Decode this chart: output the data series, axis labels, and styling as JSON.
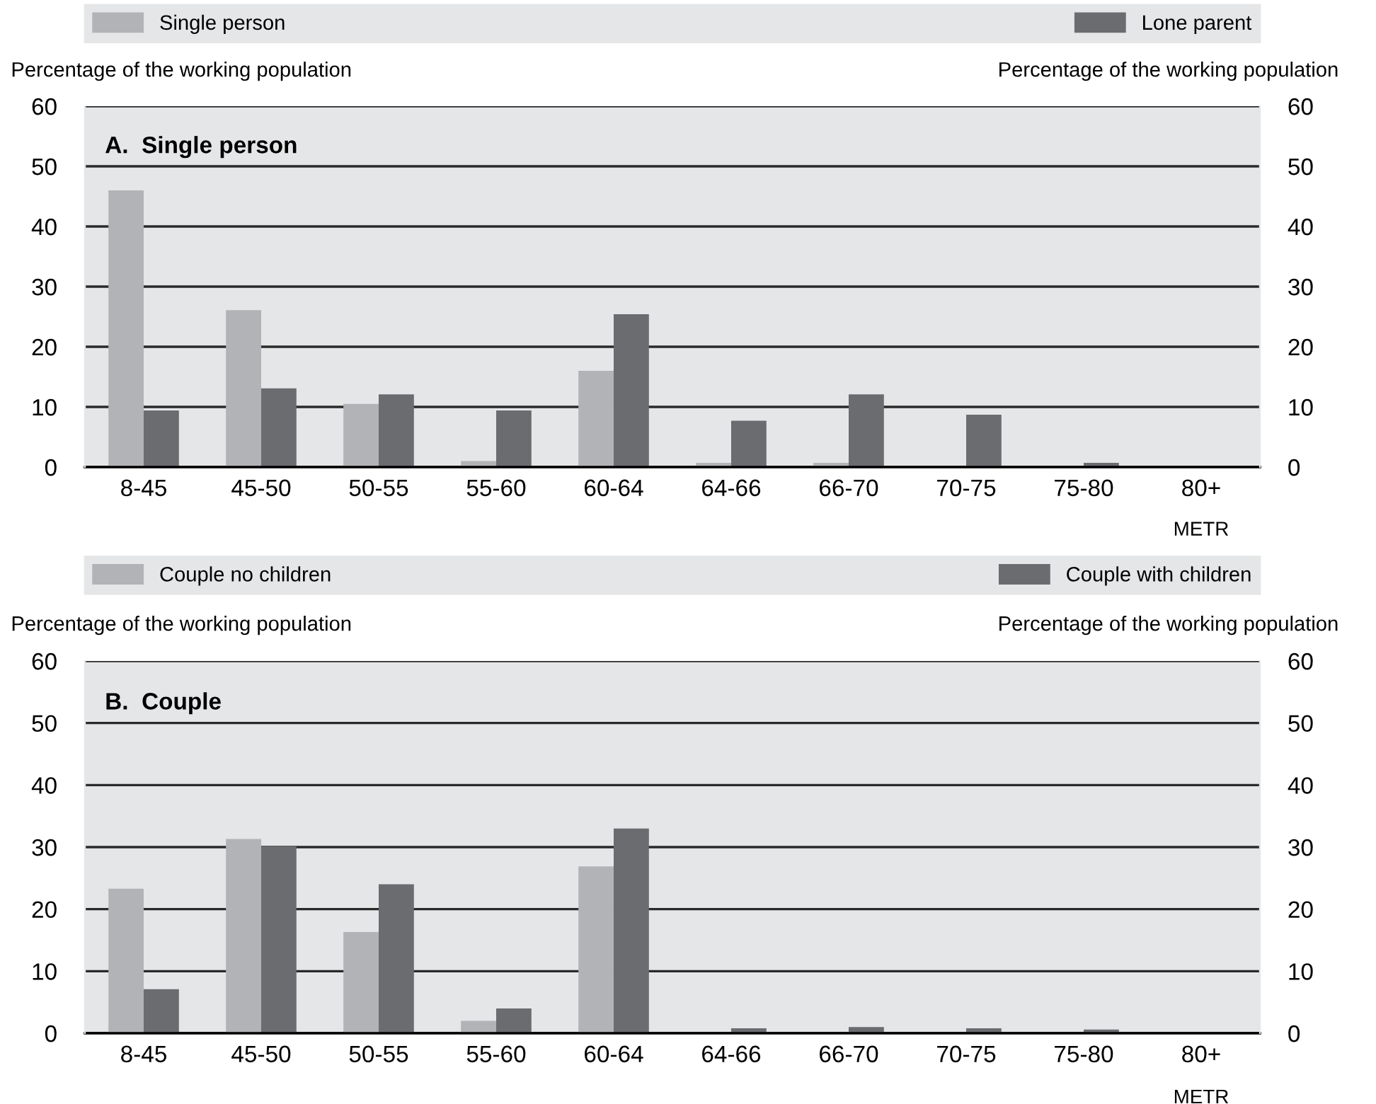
{
  "chart_data": [
    {
      "type": "bar",
      "title": "A.  Single person",
      "ylabel": "Percentage of the working population",
      "y2label": "Percentage of the working population",
      "xlabel": "METR",
      "categories": [
        "8-45",
        "45-50",
        "50-55",
        "55-60",
        "60-64",
        "64-66",
        "66-70",
        "70-75",
        "75-80",
        "80+"
      ],
      "series": [
        {
          "name": "Single person",
          "color": "#b2b3b6",
          "values": [
            46,
            26.1,
            10.5,
            1.0,
            16.0,
            0.7,
            0.7,
            0,
            0,
            0
          ]
        },
        {
          "name": "Lone parent",
          "color": "#6b6c70",
          "values": [
            9.4,
            13.1,
            12.1,
            9.4,
            25.4,
            7.7,
            12.1,
            8.7,
            0.7,
            0.2
          ]
        }
      ],
      "ylim": [
        0,
        60
      ],
      "yticks": [
        0,
        10,
        20,
        30,
        40,
        50,
        60
      ],
      "y2lim": [
        0,
        60
      ],
      "y2ticks": [
        0,
        10,
        20,
        30,
        40,
        50,
        60
      ],
      "grid": "y",
      "legend": "top"
    },
    {
      "type": "bar",
      "title": "B.  Couple",
      "ylabel": "Percentage of the working population",
      "y2label": "Percentage of the working population",
      "xlabel": "METR",
      "categories": [
        "8-45",
        "45-50",
        "50-55",
        "55-60",
        "60-64",
        "64-66",
        "66-70",
        "70-75",
        "75-80",
        "80+"
      ],
      "series": [
        {
          "name": "Couple no children",
          "color": "#b2b3b6",
          "values": [
            23.3,
            31.3,
            16.3,
            2.0,
            26.9,
            0,
            0,
            0,
            0,
            0
          ]
        },
        {
          "name": "Couple with children",
          "color": "#6b6c70",
          "values": [
            7.1,
            30.1,
            24.0,
            4.0,
            33.0,
            0.8,
            1.0,
            0.8,
            0.6,
            0
          ]
        }
      ],
      "ylim": [
        0,
        60
      ],
      "yticks": [
        0,
        10,
        20,
        30,
        40,
        50,
        60
      ],
      "y2lim": [
        0,
        60
      ],
      "y2ticks": [
        0,
        10,
        20,
        30,
        40,
        50,
        60
      ],
      "grid": "y",
      "legend": "top"
    }
  ]
}
